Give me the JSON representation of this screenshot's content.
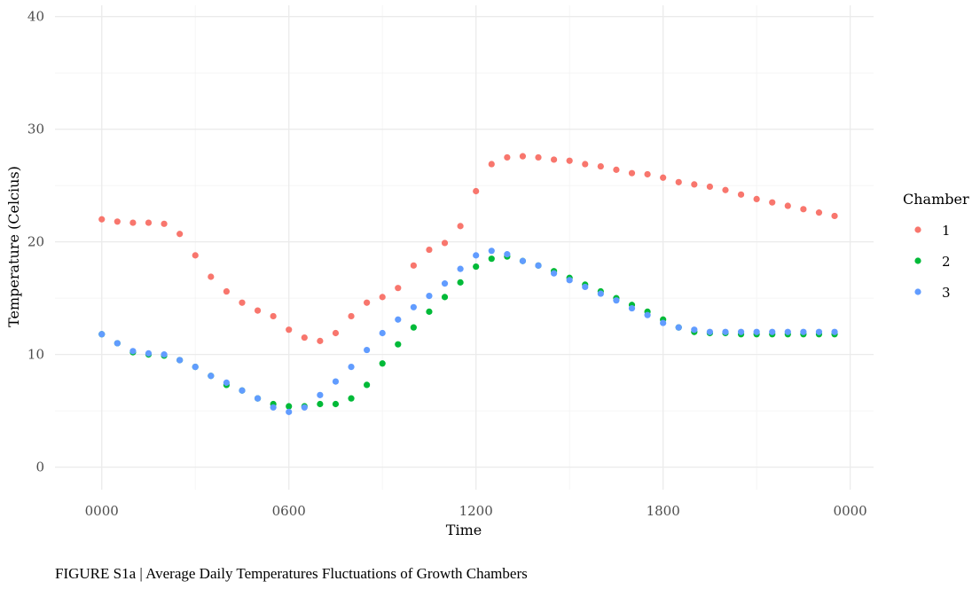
{
  "caption": "FIGURE S1a | Average Daily Temperatures Fluctuations of Growth Chambers",
  "chart_data": {
    "type": "scatter",
    "title": "",
    "xlabel": "Time",
    "ylabel": "Temperature (Celcius)",
    "xlim": [
      -1.5,
      24.75
    ],
    "ylim": [
      -2,
      41
    ],
    "x_ticks": [
      {
        "value": 0,
        "label": "0000"
      },
      {
        "value": 6,
        "label": "0600"
      },
      {
        "value": 12,
        "label": "1200"
      },
      {
        "value": 18,
        "label": "1800"
      },
      {
        "value": 24,
        "label": "0000"
      }
    ],
    "y_ticks": [
      0,
      10,
      20,
      30,
      40
    ],
    "x_minor": [
      3,
      9,
      15,
      21
    ],
    "y_minor": [
      5,
      15,
      25,
      35
    ],
    "grid": true,
    "legend": {
      "title": "Chamber",
      "placement": "right"
    },
    "x": [
      0,
      0.5,
      1,
      1.5,
      2,
      2.5,
      3,
      3.5,
      4,
      4.5,
      5,
      5.5,
      6,
      6.5,
      7,
      7.5,
      8,
      8.5,
      9,
      9.5,
      10,
      10.5,
      11,
      11.5,
      12,
      12.5,
      13,
      13.5,
      14,
      14.5,
      15,
      15.5,
      16,
      16.5,
      17,
      17.5,
      18,
      18.5,
      19,
      19.5,
      20,
      20.5,
      21,
      21.5,
      22,
      22.5,
      23,
      23.5
    ],
    "series": [
      {
        "name": "1",
        "color": "#F8766D",
        "values": [
          22.0,
          21.8,
          21.7,
          21.7,
          21.6,
          20.7,
          18.8,
          16.9,
          15.6,
          14.6,
          13.9,
          13.4,
          12.2,
          11.5,
          11.2,
          11.9,
          13.4,
          14.6,
          15.1,
          15.9,
          17.9,
          19.3,
          19.9,
          21.4,
          24.5,
          26.9,
          27.5,
          27.6,
          27.5,
          27.3,
          27.2,
          26.9,
          26.7,
          26.4,
          26.1,
          26.0,
          25.7,
          25.3,
          25.1,
          24.9,
          24.6,
          24.2,
          23.8,
          23.5,
          23.2,
          22.9,
          22.6,
          22.3
        ]
      },
      {
        "name": "2",
        "color": "#00BA38",
        "values": [
          11.8,
          11.0,
          10.2,
          10.0,
          9.9,
          9.5,
          8.9,
          8.1,
          7.3,
          6.8,
          6.1,
          5.6,
          5.4,
          5.4,
          5.6,
          5.6,
          6.1,
          7.3,
          9.2,
          10.9,
          12.4,
          13.8,
          15.1,
          16.4,
          17.8,
          18.5,
          18.7,
          18.3,
          17.9,
          17.4,
          16.8,
          16.2,
          15.6,
          15.0,
          14.4,
          13.8,
          13.1,
          12.4,
          12.0,
          11.9,
          11.9,
          11.8,
          11.8,
          11.8,
          11.8,
          11.8,
          11.8,
          11.8
        ]
      },
      {
        "name": "3",
        "color": "#619CFF",
        "values": [
          11.8,
          11.0,
          10.3,
          10.1,
          10.0,
          9.5,
          8.9,
          8.1,
          7.5,
          6.8,
          6.1,
          5.3,
          4.9,
          5.3,
          6.4,
          7.6,
          8.9,
          10.4,
          11.9,
          13.1,
          14.2,
          15.2,
          16.3,
          17.6,
          18.8,
          19.2,
          18.9,
          18.3,
          17.9,
          17.2,
          16.6,
          16.0,
          15.4,
          14.8,
          14.1,
          13.5,
          12.8,
          12.4,
          12.2,
          12.0,
          12.0,
          12.0,
          12.0,
          12.0,
          12.0,
          12.0,
          12.0,
          12.0
        ]
      }
    ]
  }
}
